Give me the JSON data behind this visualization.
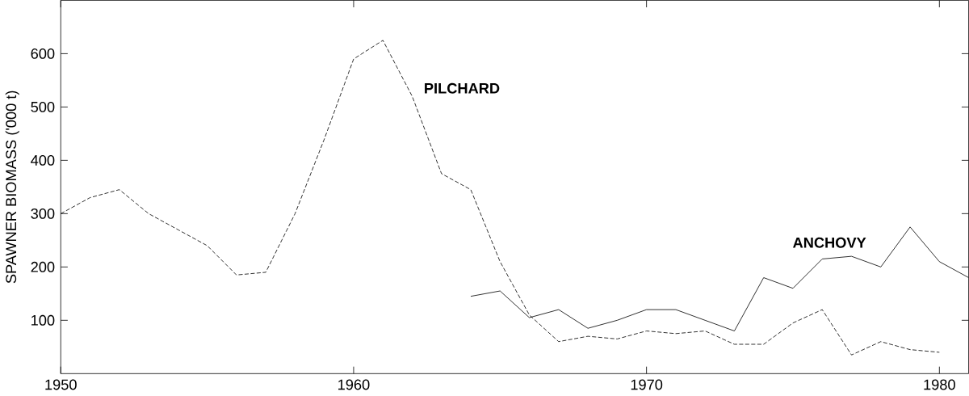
{
  "chart_data": {
    "type": "line",
    "ylabel": "SPAWNER BIOMASS ('000 t)",
    "xlim": [
      1950,
      1981
    ],
    "ylim": [
      0,
      700
    ],
    "xticks": [
      1950,
      1960,
      1970,
      1980
    ],
    "yticks": [
      100,
      200,
      300,
      400,
      500,
      600
    ],
    "grid": false,
    "marker": "none",
    "series": [
      {
        "name": "PILCHARD",
        "color": "#000000",
        "line_style": "dashed",
        "x": [
          1950,
          1951,
          1952,
          1953,
          1954,
          1955,
          1956,
          1957,
          1958,
          1959,
          1960,
          1961,
          1962,
          1963,
          1964,
          1965,
          1966,
          1967,
          1968,
          1969,
          1970,
          1971,
          1972,
          1973,
          1974,
          1975,
          1976,
          1977,
          1978,
          1979,
          1980
        ],
        "values": [
          300,
          330,
          345,
          300,
          270,
          240,
          185,
          190,
          300,
          440,
          590,
          625,
          520,
          375,
          345,
          210,
          110,
          60,
          70,
          65,
          80,
          75,
          80,
          55,
          55,
          95,
          120,
          35,
          60,
          45,
          40
        ]
      },
      {
        "name": "ANCHOVY",
        "color": "#000000",
        "line_style": "solid",
        "x": [
          1964,
          1965,
          1966,
          1967,
          1968,
          1969,
          1970,
          1971,
          1972,
          1973,
          1974,
          1975,
          1976,
          1977,
          1978,
          1979,
          1980,
          1981
        ],
        "values": [
          145,
          155,
          105,
          120,
          85,
          100,
          120,
          120,
          100,
          80,
          180,
          160,
          215,
          220,
          200,
          275,
          210,
          180
        ]
      }
    ]
  }
}
